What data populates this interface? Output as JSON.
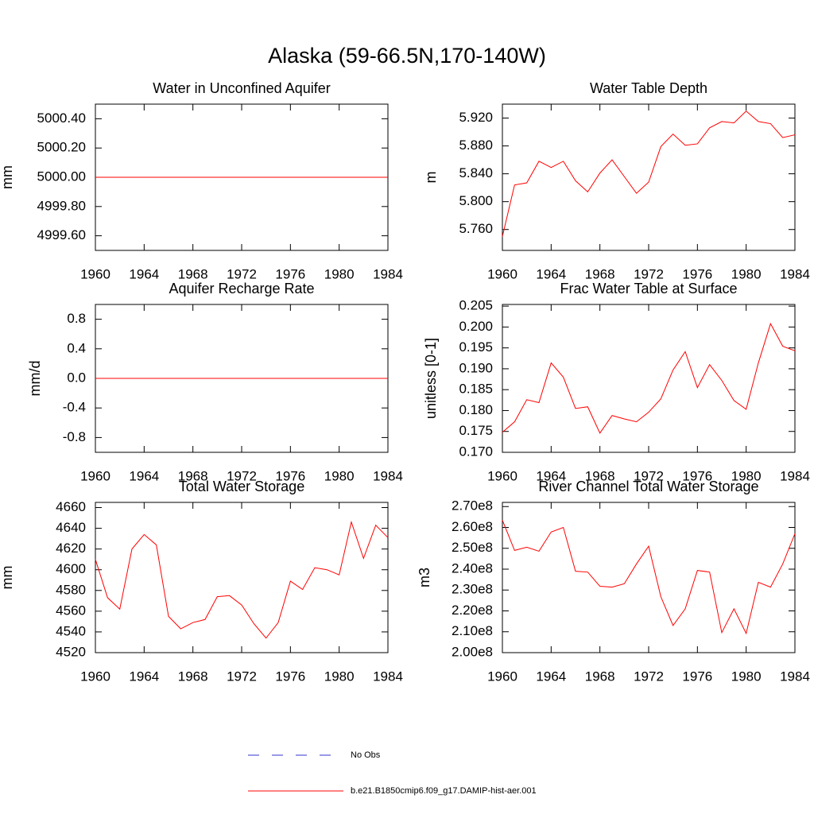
{
  "title": "Alaska (59-66.5N,170-140W)",
  "legend": [
    {
      "name": "No Obs",
      "color": "#3333cc",
      "dash": true
    },
    {
      "name": "b.e21.B1850cmip6.f09_g17.DAMIP-hist-aer.001",
      "color": "#ff0000",
      "dash": false
    }
  ],
  "chart_data": [
    {
      "type": "line",
      "title": "Water in Unconfined Aquifer",
      "y_label": "mm",
      "x": [
        1960,
        1961,
        1962,
        1963,
        1964,
        1965,
        1966,
        1967,
        1968,
        1969,
        1970,
        1971,
        1972,
        1973,
        1974,
        1975,
        1976,
        1977,
        1978,
        1979,
        1980,
        1981,
        1982,
        1983,
        1984
      ],
      "xlim": [
        1960,
        1984
      ],
      "xticks": [
        1960,
        1964,
        1968,
        1972,
        1976,
        1980,
        1984
      ],
      "ylim": [
        4999.5,
        5000.5
      ],
      "yticks": [
        {
          "value": 4999.6,
          "label": "4999.60"
        },
        {
          "value": 4999.8,
          "label": "4999.80"
        },
        {
          "value": 5000,
          "label": "5000.00"
        },
        {
          "value": 5000.2,
          "label": "5000.20"
        },
        {
          "value": 5000.4,
          "label": "5000.40"
        }
      ],
      "series": [
        {
          "color": "#ff0000",
          "values": [
            5000,
            5000,
            5000,
            5000,
            5000,
            5000,
            5000,
            5000,
            5000,
            5000,
            5000,
            5000,
            5000,
            5000,
            5000,
            5000,
            5000,
            5000,
            5000,
            5000,
            5000,
            5000,
            5000,
            5000,
            5000
          ]
        }
      ]
    },
    {
      "type": "line",
      "title": "Water Table Depth",
      "y_label": "m",
      "x": [
        1960,
        1961,
        1962,
        1963,
        1964,
        1965,
        1966,
        1967,
        1968,
        1969,
        1970,
        1971,
        1972,
        1973,
        1974,
        1975,
        1976,
        1977,
        1978,
        1979,
        1980,
        1981,
        1982,
        1983,
        1984
      ],
      "xlim": [
        1960,
        1984
      ],
      "xticks": [
        1960,
        1964,
        1968,
        1972,
        1976,
        1980,
        1984
      ],
      "ylim": [
        5.73,
        5.94
      ],
      "yticks": [
        {
          "value": 5.76,
          "label": "5.760"
        },
        {
          "value": 5.8,
          "label": "5.800"
        },
        {
          "value": 5.84,
          "label": "5.840"
        },
        {
          "value": 5.88,
          "label": "5.880"
        },
        {
          "value": 5.92,
          "label": "5.920"
        }
      ],
      "series": [
        {
          "color": "#ff0000",
          "values": [
            5.75,
            5.824,
            5.827,
            5.858,
            5.849,
            5.858,
            5.83,
            5.814,
            5.841,
            5.86,
            5.836,
            5.812,
            5.828,
            5.879,
            5.897,
            5.881,
            5.883,
            5.906,
            5.915,
            5.913,
            5.93,
            5.915,
            5.912,
            5.892,
            5.896
          ]
        }
      ]
    },
    {
      "type": "line",
      "title": "Aquifer Recharge Rate",
      "y_label": "mm/d",
      "x": [
        1960,
        1961,
        1962,
        1963,
        1964,
        1965,
        1966,
        1967,
        1968,
        1969,
        1970,
        1971,
        1972,
        1973,
        1974,
        1975,
        1976,
        1977,
        1978,
        1979,
        1980,
        1981,
        1982,
        1983,
        1984
      ],
      "xlim": [
        1960,
        1984
      ],
      "xticks": [
        1960,
        1964,
        1968,
        1972,
        1976,
        1980,
        1984
      ],
      "ylim": [
        -1,
        1
      ],
      "yticks": [
        -0.8,
        -0.4,
        {
          "value": 0,
          "label": "0.0"
        },
        0.4,
        0.8
      ],
      "series": [
        {
          "color": "#ff0000",
          "values": [
            0,
            0,
            0,
            0,
            0,
            0,
            0,
            0,
            0,
            0,
            0,
            0,
            0,
            0,
            0,
            0,
            0,
            0,
            0,
            0,
            0,
            0,
            0,
            0,
            0
          ]
        }
      ]
    },
    {
      "type": "line",
      "title": "Frac Water Table at Surface",
      "y_label": "unitless [0-1]",
      "x": [
        1960,
        1961,
        1962,
        1963,
        1964,
        1965,
        1966,
        1967,
        1968,
        1969,
        1970,
        1971,
        1972,
        1973,
        1974,
        1975,
        1976,
        1977,
        1978,
        1979,
        1980,
        1981,
        1982,
        1983,
        1984
      ],
      "xlim": [
        1960,
        1984
      ],
      "xticks": [
        1960,
        1964,
        1968,
        1972,
        1976,
        1980,
        1984
      ],
      "ylim": [
        0.17,
        0.2054
      ],
      "yticks": [
        {
          "value": 0.17,
          "label": "0.170"
        },
        0.175,
        {
          "value": 0.18,
          "label": "0.180"
        },
        0.185,
        {
          "value": 0.19,
          "label": "0.190"
        },
        0.195,
        {
          "value": 0.2,
          "label": "0.200"
        },
        0.205
      ],
      "series": [
        {
          "color": "#ff0000",
          "values": [
            0.1748,
            0.1773,
            0.1826,
            0.1819,
            0.1914,
            0.188,
            0.1805,
            0.1809,
            0.1746,
            0.1788,
            0.178,
            0.1773,
            0.1796,
            0.1828,
            0.1897,
            0.1941,
            0.1855,
            0.191,
            0.1872,
            0.1824,
            0.1803,
            0.1914,
            0.2008,
            0.1954,
            0.1943
          ]
        }
      ]
    },
    {
      "type": "line",
      "title": "Total Water Storage",
      "y_label": "mm",
      "x": [
        1960,
        1961,
        1962,
        1963,
        1964,
        1965,
        1966,
        1967,
        1968,
        1969,
        1970,
        1971,
        1972,
        1973,
        1974,
        1975,
        1976,
        1977,
        1978,
        1979,
        1980,
        1981,
        1982,
        1983,
        1984
      ],
      "xlim": [
        1960,
        1984
      ],
      "xticks": [
        1960,
        1964,
        1968,
        1972,
        1976,
        1980,
        1984
      ],
      "ylim": [
        4520,
        4665
      ],
      "yticks": [
        4520,
        4540,
        4560,
        4580,
        4600,
        4620,
        4640,
        4660
      ],
      "series": [
        {
          "color": "#ff0000",
          "values": [
            4610,
            4573,
            4562,
            4620,
            4634,
            4624,
            4555,
            4543,
            4549,
            4552,
            4574,
            4575,
            4566,
            4548,
            4534,
            4549,
            4589,
            4581,
            4602,
            4600,
            4595,
            4646,
            4611,
            4643,
            4631
          ]
        }
      ]
    },
    {
      "type": "line",
      "title": "River Channel Total Water Storage",
      "y_label": "m3",
      "x": [
        1960,
        1961,
        1962,
        1963,
        1964,
        1965,
        1966,
        1967,
        1968,
        1969,
        1970,
        1971,
        1972,
        1973,
        1974,
        1975,
        1976,
        1977,
        1978,
        1979,
        1980,
        1981,
        1982,
        1983,
        1984
      ],
      "xlim": [
        1960,
        1984
      ],
      "xticks": [
        1960,
        1964,
        1968,
        1972,
        1976,
        1980,
        1984
      ],
      "ylim": [
        200000000,
        272000000
      ],
      "yticks": [
        {
          "value": 200000000,
          "label": "2.00e8"
        },
        {
          "value": 210000000,
          "label": "2.10e8"
        },
        {
          "value": 220000000,
          "label": "2.20e8"
        },
        {
          "value": 230000000,
          "label": "2.30e8"
        },
        {
          "value": 240000000,
          "label": "2.40e8"
        },
        {
          "value": 250000000,
          "label": "2.50e8"
        },
        {
          "value": 260000000,
          "label": "2.60e8"
        },
        {
          "value": 270000000,
          "label": "2.70e8"
        }
      ],
      "series": [
        {
          "color": "#ff0000",
          "values": [
            263500000,
            249000000,
            250500000,
            248600000,
            257800000,
            260000000,
            239000000,
            238600000,
            231800000,
            231400000,
            233000000,
            242500000,
            251000000,
            226800000,
            213000000,
            221000000,
            239400000,
            238600000,
            209600000,
            221000000,
            209200000,
            233700000,
            231400000,
            242500000,
            257000000
          ]
        }
      ]
    }
  ]
}
